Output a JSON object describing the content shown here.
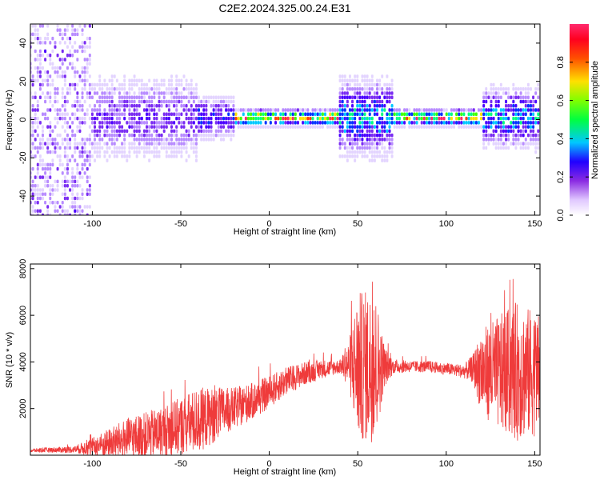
{
  "title": "C2E2.2024.325.00.24.E31",
  "colors": {
    "snr_line": "#ef3b3b",
    "colormap": [
      "#ffffff",
      "#e3d4ff",
      "#b88cff",
      "#7a2cf2",
      "#4b00ff",
      "#0033ff",
      "#00c8ff",
      "#00ff80",
      "#40ff00",
      "#ffe000",
      "#ff4000",
      "#ff2a6d"
    ]
  },
  "chart_data": [
    {
      "type": "heatmap",
      "xlabel": "Height of straight line (km)",
      "ylabel": "Frequency (Hz)",
      "xlim": [
        -135,
        153
      ],
      "ylim": [
        -50,
        50
      ],
      "xticks": [
        -100,
        -50,
        0,
        50,
        100,
        150
      ],
      "yticks": [
        -40,
        -20,
        0,
        20,
        40
      ],
      "colorbar": {
        "label": "Normalized spectral amplitude",
        "range": [
          0,
          1
        ],
        "ticks": [
          "0.0",
          "0.2",
          "0.4",
          "0.6",
          "0.8"
        ]
      }
    },
    {
      "type": "line",
      "xlabel": "Height of straight line (km)",
      "ylabel": "SNR (10 * v/v)",
      "xlim": [
        -135,
        153
      ],
      "ylim": [
        0,
        8200
      ],
      "xticks": [
        -100,
        -50,
        0,
        50,
        100,
        150
      ],
      "yticks": [
        2000,
        4000,
        6000,
        8000
      ],
      "envelope": {
        "x": [
          -135,
          -110,
          -100,
          -80,
          -60,
          -40,
          -20,
          -10,
          0,
          10,
          20,
          30,
          40,
          45,
          50,
          55,
          60,
          65,
          70,
          80,
          90,
          100,
          110,
          115,
          120,
          130,
          140,
          150,
          153
        ],
        "mean": [
          200,
          250,
          350,
          700,
          1000,
          1500,
          2000,
          2300,
          2700,
          3200,
          3500,
          3700,
          3800,
          3900,
          3800,
          3800,
          3800,
          3800,
          3800,
          3800,
          3800,
          3700,
          3600,
          3700,
          3600,
          3500,
          3600,
          3500,
          3500
        ],
        "amp": [
          80,
          150,
          400,
          900,
          1100,
          1400,
          900,
          800,
          700,
          600,
          500,
          400,
          300,
          1000,
          3200,
          3300,
          3200,
          900,
          300,
          250,
          250,
          250,
          300,
          600,
          1800,
          2500,
          3000,
          2700,
          2500
        ]
      }
    }
  ]
}
